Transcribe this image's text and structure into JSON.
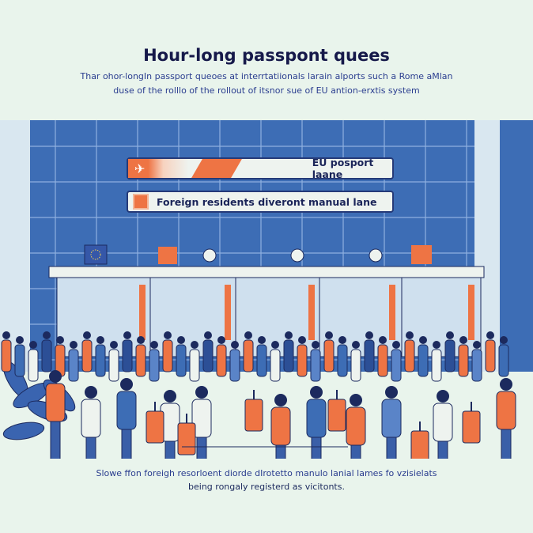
{
  "header": {
    "title": "Hour-long passpont  quees",
    "subtitle_line1": "Thar ohor-longIn passport queoes at interrtatiionals larain alports such a Rome aMlan",
    "subtitle_line2": "duse of the rolllo of  the rollout of itsnor sue  of EU  antion-erxtis system"
  },
  "signs": {
    "eu_lane": "EU posport laane",
    "foreign_lane": "Foreign residents  diveront manual lane",
    "eu_icon": "airplane-icon",
    "foreign_icon": "document-icon"
  },
  "caption": {
    "line1": "Slowe ffon foreigh  resorloent  diorde dIrotetto manulo lanial lames  fo vzisielats",
    "line2": "being rongaly registerd as vicitonts."
  },
  "colors": {
    "background": "#e9f4ec",
    "wall": "#3d6db5",
    "accent": "#ee7444",
    "navy": "#1c2a5e",
    "text_blue": "#2a3d8f"
  }
}
